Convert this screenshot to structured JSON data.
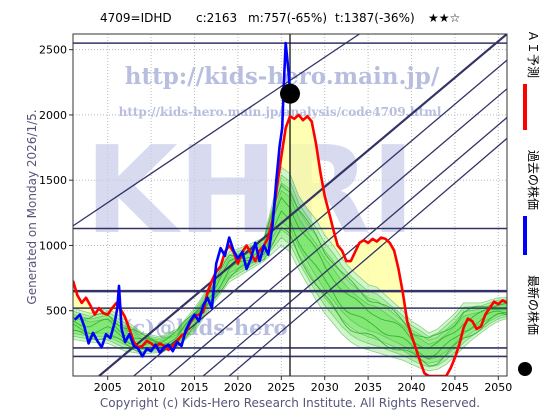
{
  "header": {
    "ticker": "4709=IDHD",
    "current": "c:2163",
    "min": "m:757(-65%)",
    "target": "t:1387(-36%)",
    "stars": "★★☆"
  },
  "side_label": "Generated on Monday 2026/1/5.",
  "footer": "Copyright (c) Kids-Hero Research Institute. All Rights Reserved.",
  "watermark": {
    "url_main": "http://kids-hero.main.jp/",
    "url_sub": "http://kids-hero.main.jp/analysis/code4709.html",
    "big": "KHRI",
    "bottom": "(c)@kids-hero"
  },
  "legend": [
    {
      "label": "ＡＩ予測",
      "color": "#ff0000",
      "marker": "line"
    },
    {
      "label": "過去の株価",
      "color": "#0000ff",
      "marker": "line"
    },
    {
      "label": "最新の株価",
      "color": "#000000",
      "marker": "dot"
    }
  ],
  "colors": {
    "ai_forecast": "#ff0000",
    "past_price": "#0000ff",
    "latest": "#000000",
    "band_fill": "#55dd44",
    "yellow_fill": "#ffff99",
    "trend": "#333366"
  },
  "chart_data": {
    "type": "line",
    "xlim": [
      2001,
      2051
    ],
    "ylim": [
      0,
      2620
    ],
    "x_ticks": [
      2005,
      2010,
      2015,
      2020,
      2025,
      2030,
      2035,
      2040,
      2045,
      2050
    ],
    "y_ticks": [
      500,
      1000,
      1500,
      2000,
      2500
    ],
    "hlines": [
      2550,
      1130,
      650,
      520,
      215,
      150
    ],
    "vline": 2026,
    "latest": {
      "x": 2026,
      "y": 2163
    },
    "trend_lines": [
      {
        "x1": 2001,
        "y1": 1150,
        "x2": 2034,
        "y2": 2620
      },
      {
        "x1": 2004,
        "y1": 0,
        "x2": 2051,
        "y2": 2620
      },
      {
        "x1": 2008,
        "y1": 0,
        "x2": 2051,
        "y2": 2420
      },
      {
        "x1": 2012,
        "y1": 0,
        "x2": 2051,
        "y2": 2200
      },
      {
        "x1": 2016,
        "y1": 0,
        "x2": 2051,
        "y2": 1980
      },
      {
        "x1": 2019,
        "y1": 0,
        "x2": 2051,
        "y2": 1820
      }
    ],
    "past_price": [
      [
        2001.2,
        430
      ],
      [
        2001.8,
        470
      ],
      [
        2002.3,
        380
      ],
      [
        2002.8,
        250
      ],
      [
        2003.3,
        330
      ],
      [
        2003.8,
        270
      ],
      [
        2004.3,
        220
      ],
      [
        2004.8,
        320
      ],
      [
        2005.3,
        290
      ],
      [
        2005.8,
        410
      ],
      [
        2006.1,
        520
      ],
      [
        2006.3,
        690
      ],
      [
        2006.6,
        360
      ],
      [
        2007.0,
        260
      ],
      [
        2007.5,
        320
      ],
      [
        2008.0,
        230
      ],
      [
        2008.5,
        210
      ],
      [
        2009.0,
        150
      ],
      [
        2009.5,
        210
      ],
      [
        2010.0,
        190
      ],
      [
        2010.5,
        240
      ],
      [
        2011.0,
        180
      ],
      [
        2011.5,
        220
      ],
      [
        2012.0,
        240
      ],
      [
        2012.5,
        190
      ],
      [
        2013.0,
        260
      ],
      [
        2013.5,
        230
      ],
      [
        2014.0,
        350
      ],
      [
        2014.5,
        420
      ],
      [
        2015.0,
        470
      ],
      [
        2015.5,
        420
      ],
      [
        2016.0,
        540
      ],
      [
        2016.5,
        600
      ],
      [
        2017.0,
        520
      ],
      [
        2017.5,
        860
      ],
      [
        2018.0,
        980
      ],
      [
        2018.5,
        920
      ],
      [
        2019.0,
        1060
      ],
      [
        2019.5,
        960
      ],
      [
        2020.0,
        900
      ],
      [
        2020.5,
        950
      ],
      [
        2021.0,
        820
      ],
      [
        2021.5,
        900
      ],
      [
        2022.0,
        1020
      ],
      [
        2022.5,
        880
      ],
      [
        2023.0,
        1000
      ],
      [
        2023.5,
        930
      ],
      [
        2024.0,
        1160
      ],
      [
        2024.4,
        1480
      ],
      [
        2024.8,
        1760
      ],
      [
        2025.1,
        1900
      ],
      [
        2025.3,
        2250
      ],
      [
        2025.5,
        2550
      ],
      [
        2025.7,
        2420
      ],
      [
        2025.9,
        2280
      ],
      [
        2026.0,
        2163
      ]
    ],
    "ai_forecast": [
      [
        2001.0,
        730
      ],
      [
        2001.5,
        620
      ],
      [
        2002.0,
        560
      ],
      [
        2002.5,
        600
      ],
      [
        2003.0,
        540
      ],
      [
        2003.5,
        470
      ],
      [
        2004.0,
        520
      ],
      [
        2004.5,
        480
      ],
      [
        2005.0,
        470
      ],
      [
        2005.5,
        520
      ],
      [
        2006.0,
        560
      ],
      [
        2006.5,
        510
      ],
      [
        2007.0,
        450
      ],
      [
        2007.5,
        360
      ],
      [
        2008.0,
        260
      ],
      [
        2008.5,
        220
      ],
      [
        2009.0,
        230
      ],
      [
        2009.5,
        270
      ],
      [
        2010.0,
        250
      ],
      [
        2010.5,
        220
      ],
      [
        2011.0,
        250
      ],
      [
        2011.5,
        230
      ],
      [
        2012.0,
        200
      ],
      [
        2012.5,
        230
      ],
      [
        2013.0,
        270
      ],
      [
        2013.5,
        310
      ],
      [
        2014.0,
        330
      ],
      [
        2014.5,
        410
      ],
      [
        2015.0,
        460
      ],
      [
        2015.5,
        470
      ],
      [
        2016.0,
        490
      ],
      [
        2016.5,
        640
      ],
      [
        2017.0,
        730
      ],
      [
        2017.5,
        800
      ],
      [
        2018.0,
        840
      ],
      [
        2018.5,
        950
      ],
      [
        2019.0,
        1000
      ],
      [
        2019.5,
        950
      ],
      [
        2020.0,
        860
      ],
      [
        2020.5,
        950
      ],
      [
        2021.0,
        1000
      ],
      [
        2021.5,
        940
      ],
      [
        2022.0,
        880
      ],
      [
        2022.5,
        960
      ],
      [
        2023.0,
        1000
      ],
      [
        2023.5,
        1060
      ],
      [
        2024.0,
        1200
      ],
      [
        2024.5,
        1450
      ],
      [
        2025.0,
        1680
      ],
      [
        2025.5,
        1900
      ],
      [
        2026.0,
        1990
      ],
      [
        2026.5,
        1970
      ],
      [
        2027.0,
        2000
      ],
      [
        2027.5,
        1960
      ],
      [
        2028.0,
        1990
      ],
      [
        2028.5,
        1950
      ],
      [
        2029.0,
        1780
      ],
      [
        2029.5,
        1560
      ],
      [
        2030.0,
        1380
      ],
      [
        2030.5,
        1250
      ],
      [
        2031.0,
        1120
      ],
      [
        2031.5,
        1000
      ],
      [
        2032.0,
        960
      ],
      [
        2032.5,
        880
      ],
      [
        2033.0,
        880
      ],
      [
        2033.5,
        950
      ],
      [
        2034.0,
        1020
      ],
      [
        2034.5,
        1040
      ],
      [
        2035.0,
        1020
      ],
      [
        2035.5,
        1050
      ],
      [
        2036.0,
        1030
      ],
      [
        2036.5,
        1060
      ],
      [
        2037.0,
        1050
      ],
      [
        2037.5,
        1020
      ],
      [
        2038.0,
        960
      ],
      [
        2038.5,
        820
      ],
      [
        2039.0,
        640
      ],
      [
        2039.5,
        420
      ],
      [
        2040.0,
        310
      ],
      [
        2040.5,
        210
      ],
      [
        2041.0,
        110
      ],
      [
        2041.5,
        20
      ],
      [
        2042.0,
        0
      ],
      [
        2042.5,
        0
      ],
      [
        2043.5,
        0
      ],
      [
        2044.0,
        0
      ],
      [
        2044.5,
        60
      ],
      [
        2045.0,
        140
      ],
      [
        2045.5,
        240
      ],
      [
        2046.0,
        370
      ],
      [
        2046.5,
        440
      ],
      [
        2047.0,
        420
      ],
      [
        2047.5,
        360
      ],
      [
        2048.0,
        380
      ],
      [
        2048.5,
        470
      ],
      [
        2049.0,
        520
      ],
      [
        2049.5,
        570
      ],
      [
        2050.0,
        550
      ],
      [
        2050.5,
        580
      ],
      [
        2051.0,
        560
      ]
    ],
    "band_upper": [
      [
        2001,
        520
      ],
      [
        2003,
        480
      ],
      [
        2005,
        520
      ],
      [
        2007,
        430
      ],
      [
        2009,
        330
      ],
      [
        2011,
        300
      ],
      [
        2013,
        360
      ],
      [
        2015,
        520
      ],
      [
        2017,
        720
      ],
      [
        2019,
        950
      ],
      [
        2021,
        1000
      ],
      [
        2023,
        1060
      ],
      [
        2025,
        1600
      ],
      [
        2026,
        1550
      ],
      [
        2027,
        1380
      ],
      [
        2028,
        1280
      ],
      [
        2029,
        1200
      ],
      [
        2030,
        1080
      ],
      [
        2031,
        1000
      ],
      [
        2032,
        900
      ],
      [
        2033,
        820
      ],
      [
        2034,
        760
      ],
      [
        2035,
        700
      ],
      [
        2036,
        680
      ],
      [
        2037,
        620
      ],
      [
        2038,
        560
      ],
      [
        2039,
        500
      ],
      [
        2040,
        420
      ],
      [
        2041,
        380
      ],
      [
        2042,
        330
      ],
      [
        2043,
        360
      ],
      [
        2044,
        420
      ],
      [
        2045,
        480
      ],
      [
        2046,
        560
      ],
      [
        2047,
        560
      ],
      [
        2048,
        560
      ],
      [
        2049,
        580
      ],
      [
        2050,
        600
      ],
      [
        2051,
        600
      ]
    ],
    "band_lower": [
      [
        2001,
        280
      ],
      [
        2003,
        260
      ],
      [
        2005,
        250
      ],
      [
        2007,
        190
      ],
      [
        2009,
        170
      ],
      [
        2011,
        180
      ],
      [
        2013,
        220
      ],
      [
        2015,
        340
      ],
      [
        2017,
        540
      ],
      [
        2019,
        720
      ],
      [
        2021,
        800
      ],
      [
        2023,
        880
      ],
      [
        2025,
        1000
      ],
      [
        2026,
        950
      ],
      [
        2027,
        820
      ],
      [
        2028,
        700
      ],
      [
        2029,
        580
      ],
      [
        2030,
        480
      ],
      [
        2031,
        400
      ],
      [
        2032,
        320
      ],
      [
        2033,
        260
      ],
      [
        2034,
        220
      ],
      [
        2035,
        200
      ],
      [
        2036,
        180
      ],
      [
        2037,
        160
      ],
      [
        2038,
        140
      ],
      [
        2039,
        120
      ],
      [
        2040,
        90
      ],
      [
        2041,
        60
      ],
      [
        2042,
        40
      ],
      [
        2043,
        50
      ],
      [
        2044,
        90
      ],
      [
        2045,
        150
      ],
      [
        2046,
        220
      ],
      [
        2047,
        280
      ],
      [
        2048,
        330
      ],
      [
        2049,
        380
      ],
      [
        2050,
        420
      ],
      [
        2051,
        440
      ]
    ]
  }
}
